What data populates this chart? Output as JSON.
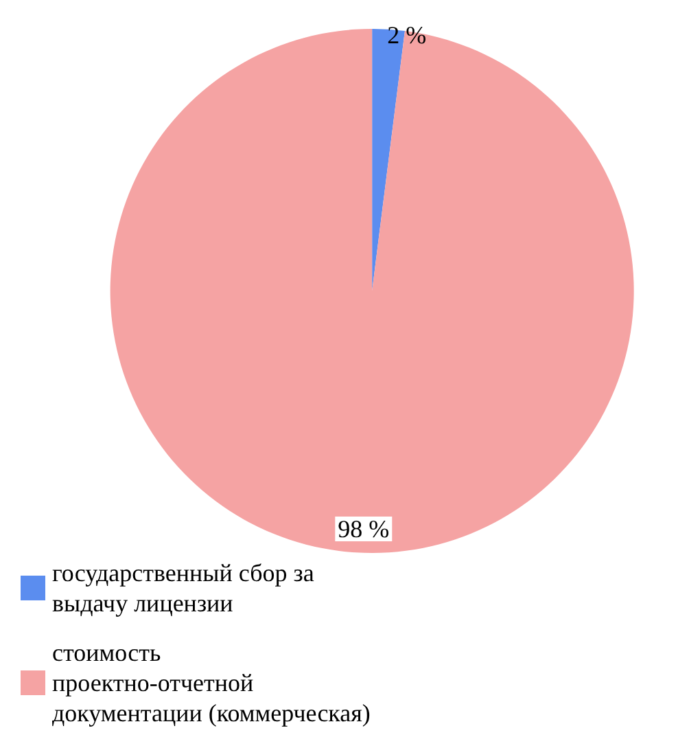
{
  "chart_data": {
    "type": "pie",
    "categories": [
      "государственный сбор за выдачу лицензии",
      "стоимость проектно-отчетной документации (коммерческая)"
    ],
    "values": [
      2,
      98
    ],
    "colors": [
      "#5b8def",
      "#f5a3a3"
    ],
    "value_labels": [
      "2 %",
      "98 %"
    ],
    "legend": "bottom"
  }
}
